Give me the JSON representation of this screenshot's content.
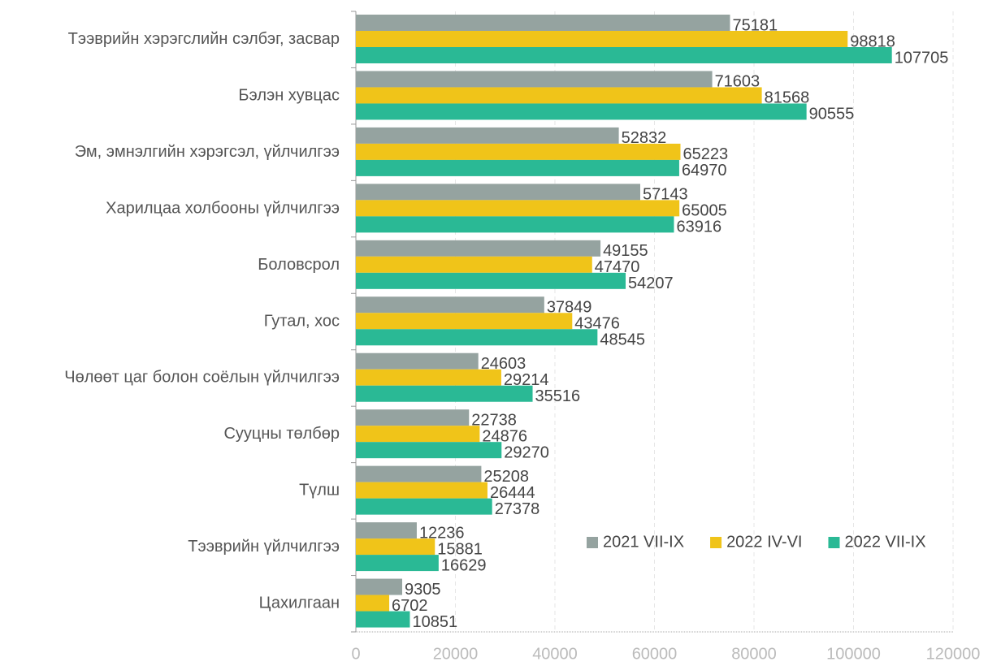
{
  "chart_data": {
    "type": "bar",
    "orientation": "horizontal",
    "categories": [
      "Тээврийн хэрэгслийн сэлбэг, засвар",
      "Бэлэн хувцас",
      "Эм, эмнэлгийн хэрэгсэл, үйлчилгээ",
      "Харилцаа холбооны үйлчилгээ",
      "Боловсрол",
      "Гутал, хос",
      "Чөлөөт цаг болон соёлын үйлчилгээ",
      "Сууцны төлбөр",
      "Түлш",
      "Тээврийн үйлчилгээ",
      "Цахилгаан"
    ],
    "series": [
      {
        "name": "2021 VII-IX",
        "color": "#95a3a0",
        "values": [
          75181,
          71603,
          52832,
          57143,
          49155,
          37849,
          24603,
          22738,
          25208,
          12236,
          9305
        ]
      },
      {
        "name": "2022 IV-VI",
        "color": "#f0c419",
        "values": [
          98818,
          81568,
          65223,
          65005,
          47470,
          43476,
          29214,
          24876,
          26444,
          15881,
          6702
        ]
      },
      {
        "name": "2022 VII-IX",
        "color": "#2ab995",
        "values": [
          107705,
          90555,
          64970,
          63916,
          54207,
          48545,
          35516,
          29270,
          27378,
          16629,
          10851
        ]
      }
    ],
    "xlim": [
      0,
      120000
    ],
    "xticks": [
      0,
      20000,
      40000,
      60000,
      80000,
      100000,
      120000
    ],
    "grid": true,
    "legend": "lower right"
  }
}
